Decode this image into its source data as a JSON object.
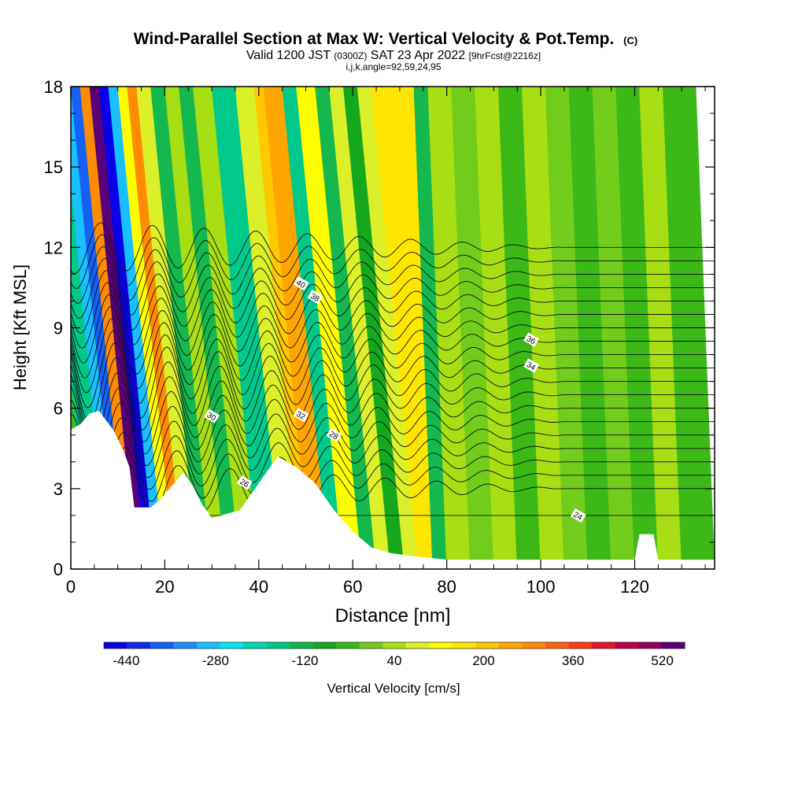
{
  "chart_data": {
    "type": "heatmap",
    "title": "Wind-Parallel Section at Max W: Vertical Velocity & Pot.Temp.",
    "title_mark": "(C)",
    "subtitle": {
      "prefix": "Valid 1200 JST",
      "utc": "(0300Z)",
      "date": "SAT 23 Apr 2022",
      "forecast": "[9hrFcst@2216z]"
    },
    "subtitle2": "i,j,k,angle=92,59,24,95",
    "xlabel": "Distance [nm]",
    "ylabel": "Height [Kft MSL]",
    "xlim": [
      0,
      137
    ],
    "ylim": [
      0,
      18
    ],
    "x_ticks": [
      0,
      20,
      40,
      60,
      80,
      100,
      120
    ],
    "y_ticks": [
      0,
      3,
      6,
      9,
      12,
      15,
      18
    ],
    "colorbar": {
      "label": "Vertical Velocity [cm/s]",
      "tick_labels": [
        "-440",
        "-280",
        "-120",
        "40",
        "200",
        "360",
        "520"
      ],
      "tick_values": [
        -440,
        -280,
        -120,
        40,
        200,
        360,
        520
      ],
      "min": -480,
      "max": 560,
      "colors": [
        "#0a00e6",
        "#0d2ef0",
        "#1560f5",
        "#1e90ff",
        "#19c0ff",
        "#00e8f0",
        "#00d8b4",
        "#00c98a",
        "#14b84e",
        "#15a81e",
        "#3cb817",
        "#72cc1c",
        "#a8de14",
        "#dcf02a",
        "#ffff00",
        "#ffe600",
        "#ffc800",
        "#ffa500",
        "#ff8c00",
        "#ff6414",
        "#ff3c14",
        "#e6142d",
        "#c3004b",
        "#96005a",
        "#5a0078"
      ]
    },
    "series": [
      {
        "name": "Vertical Velocity [cm/s]",
        "bands": [
          {
            "x": 0,
            "w": -60
          },
          {
            "x": 4,
            "w": -180
          },
          {
            "x": 8,
            "w": -300
          },
          {
            "x": 10,
            "w": -360
          },
          {
            "x": 12,
            "w": 300
          },
          {
            "x": 14,
            "w": 520
          },
          {
            "x": 16,
            "w": -440
          },
          {
            "x": 18,
            "w": -300
          },
          {
            "x": 20,
            "w": 120
          },
          {
            "x": 22,
            "w": 300
          },
          {
            "x": 24,
            "w": 100
          },
          {
            "x": 27,
            "w": -120
          },
          {
            "x": 30,
            "w": 60
          },
          {
            "x": 33,
            "w": -120
          },
          {
            "x": 36,
            "w": 60
          },
          {
            "x": 40,
            "w": -180
          },
          {
            "x": 45,
            "w": 80
          },
          {
            "x": 49,
            "w": 200
          },
          {
            "x": 51,
            "w": 260
          },
          {
            "x": 55,
            "w": -160
          },
          {
            "x": 58,
            "w": 120
          },
          {
            "x": 62,
            "w": -120
          },
          {
            "x": 65,
            "w": 100
          },
          {
            "x": 68,
            "w": -100
          },
          {
            "x": 71,
            "w": 100
          },
          {
            "x": 74,
            "w": 180
          },
          {
            "x": 77,
            "w": -120
          },
          {
            "x": 80,
            "w": 20
          },
          {
            "x": 85,
            "w": -20
          },
          {
            "x": 90,
            "w": 40
          },
          {
            "x": 95,
            "w": -60
          },
          {
            "x": 100,
            "w": 20
          },
          {
            "x": 105,
            "w": 0
          },
          {
            "x": 110,
            "w": -60
          },
          {
            "x": 115,
            "w": 10
          },
          {
            "x": 120,
            "w": -40
          },
          {
            "x": 125,
            "w": 20
          },
          {
            "x": 130,
            "w": -30
          },
          {
            "x": 137,
            "w": 0
          }
        ]
      },
      {
        "name": "Potential Temperature [C]",
        "levels": [
          {
            "value": 24,
            "label": "24",
            "label_x": 108
          },
          {
            "value": 26,
            "label": "26",
            "label_x": 37
          },
          {
            "value": 28,
            "label": "28",
            "label_x": 56
          },
          {
            "value": 30,
            "label": "30",
            "label_x": 30
          },
          {
            "value": 32,
            "label": "32",
            "label_x": 49
          },
          {
            "value": 34,
            "label": "34",
            "label_x": 98
          },
          {
            "value": 36,
            "label": "36",
            "label_x": 98
          },
          {
            "value": 38,
            "label": "38",
            "label_x": 52
          },
          {
            "value": 40,
            "label": "40",
            "label_x": 49
          }
        ]
      }
    ],
    "terrain": [
      [
        0,
        5.2
      ],
      [
        2,
        5.4
      ],
      [
        4,
        5.8
      ],
      [
        6,
        5.9
      ],
      [
        9,
        5.2
      ],
      [
        11,
        4.5
      ],
      [
        12.5,
        3.8
      ],
      [
        13.5,
        2.3
      ],
      [
        17,
        2.3
      ],
      [
        19,
        2.6
      ],
      [
        21,
        3.0
      ],
      [
        24,
        3.6
      ],
      [
        26,
        3.1
      ],
      [
        28,
        2.4
      ],
      [
        30,
        1.9
      ],
      [
        36,
        2.2
      ],
      [
        40,
        3.2
      ],
      [
        44,
        4.2
      ],
      [
        48,
        3.8
      ],
      [
        52,
        3.2
      ],
      [
        56,
        2.2
      ],
      [
        60,
        1.4
      ],
      [
        64,
        0.8
      ],
      [
        68,
        0.6
      ],
      [
        72,
        0.5
      ],
      [
        80,
        0.35
      ],
      [
        120,
        0.35
      ],
      [
        121,
        1.3
      ],
      [
        124,
        1.3
      ],
      [
        125,
        0.35
      ],
      [
        137,
        0.35
      ]
    ]
  }
}
